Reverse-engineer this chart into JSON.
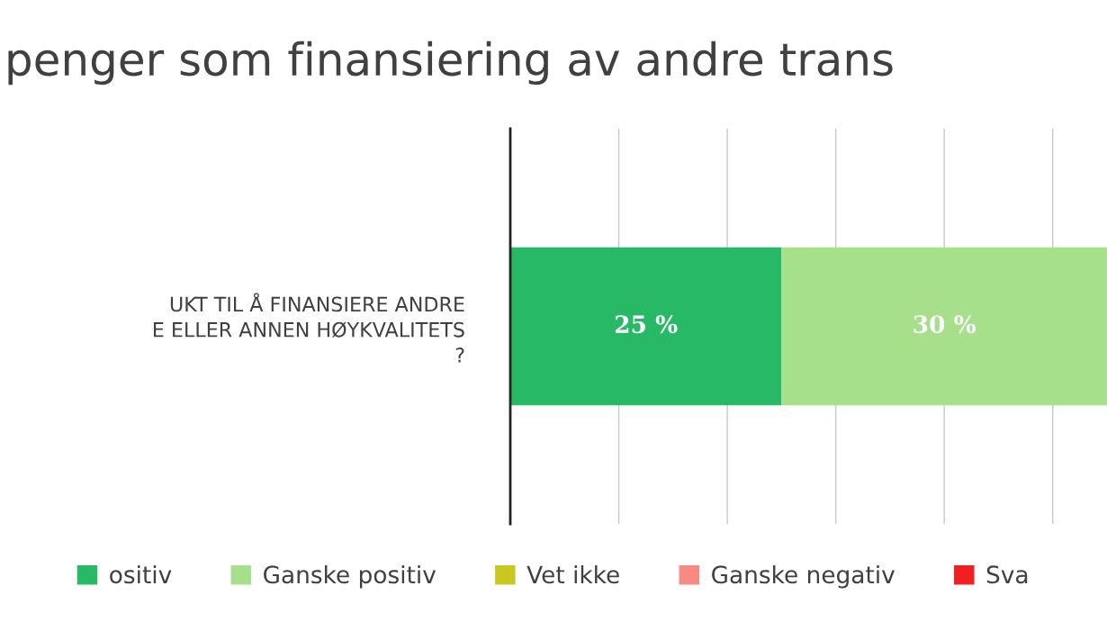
{
  "chart_data": {
    "type": "bar",
    "orientation": "horizontal",
    "stacked": true,
    "title": "penger som finansiering av andre trans",
    "categories": [
      "UKT TIL Å FINANSIERE ANDRE\nE ELLER ANNEN HØYKVALITETS\n?"
    ],
    "series": [
      {
        "name": "ositiv",
        "color": "#28b966",
        "values": [
          25
        ],
        "value_labels": [
          "25 %"
        ]
      },
      {
        "name": "Ganske positiv",
        "color": "#a6e08a",
        "values": [
          30
        ],
        "value_labels": [
          "30 %"
        ]
      },
      {
        "name": "Vet ikke",
        "color": "#c8c820",
        "values": [
          null
        ]
      },
      {
        "name": "Ganske negativ",
        "color": "#f88a84",
        "values": [
          null
        ]
      },
      {
        "name": "Sva",
        "color": "#f02020",
        "values": [
          null
        ]
      }
    ],
    "grid": "x",
    "legend": "bottom",
    "tick_labels": "y"
  }
}
